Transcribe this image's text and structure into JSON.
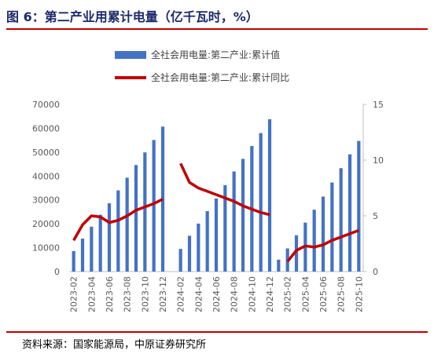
{
  "figure": {
    "title": "图 6：第二产业用累计电量（亿千瓦时，%）",
    "source": "资料来源：国家能源局，中原证券研究所"
  },
  "colors": {
    "bar": "#4472c4",
    "line": "#c00000",
    "rule": "#c00000",
    "title": "#1b2a6b"
  },
  "chart_data": {
    "type": "bar",
    "categories": [
      "2023-02",
      "2023-03",
      "2023-04",
      "2023-05",
      "2023-06",
      "2023-07",
      "2023-08",
      "2023-09",
      "2023-10",
      "2023-11",
      "2023-12",
      "2024-01",
      "2024-02",
      "2024-03",
      "2024-04",
      "2024-05",
      "2024-06",
      "2024-07",
      "2024-08",
      "2024-09",
      "2024-10",
      "2024-11",
      "2024-12",
      "2025-01",
      "2025-02",
      "2025-03",
      "2025-04",
      "2025-05",
      "2025-06",
      "2025-07",
      "2025-08",
      "2025-09",
      "2025-10"
    ],
    "x_tick_labels": [
      "2023-02",
      "2023-04",
      "2023-06",
      "2023-08",
      "2023-10",
      "2023-12",
      "2024-02",
      "2024-04",
      "2024-06",
      "2024-08",
      "2024-10",
      "2024-12",
      "2025-02",
      "2025-04",
      "2025-06",
      "2025-08",
      "2025-10"
    ],
    "series": [
      {
        "name": "全社会用电量:第二产业:累计值",
        "type": "bar",
        "axis": "left",
        "values": [
          8600,
          13800,
          18800,
          23800,
          28600,
          34000,
          39300,
          44600,
          49900,
          55100,
          60700,
          null,
          9500,
          15000,
          20100,
          25300,
          30600,
          36200,
          41900,
          47200,
          52600,
          58000,
          63800,
          5000,
          9700,
          15200,
          20500,
          25900,
          31400,
          37300,
          43300,
          49100,
          54700
        ]
      },
      {
        "name": "全社会用电量:第二产业:累计同比",
        "type": "line",
        "axis": "right",
        "values": [
          2.8,
          4.2,
          5.0,
          4.9,
          4.4,
          4.6,
          5.0,
          5.5,
          5.8,
          6.1,
          6.5,
          null,
          9.7,
          8.0,
          7.5,
          7.2,
          6.9,
          6.6,
          6.3,
          5.9,
          5.6,
          5.3,
          5.1,
          null,
          0.9,
          1.9,
          2.3,
          2.2,
          2.4,
          2.8,
          3.1,
          3.4,
          3.7
        ]
      }
    ],
    "y_left": {
      "ticks": [
        0,
        10000,
        20000,
        30000,
        40000,
        50000,
        60000,
        70000
      ],
      "ylim": [
        0,
        70000
      ]
    },
    "y_right": {
      "ticks": [
        0,
        5,
        10,
        15
      ],
      "ylim": [
        0,
        15
      ]
    },
    "grid": false,
    "legend_position": "top"
  }
}
